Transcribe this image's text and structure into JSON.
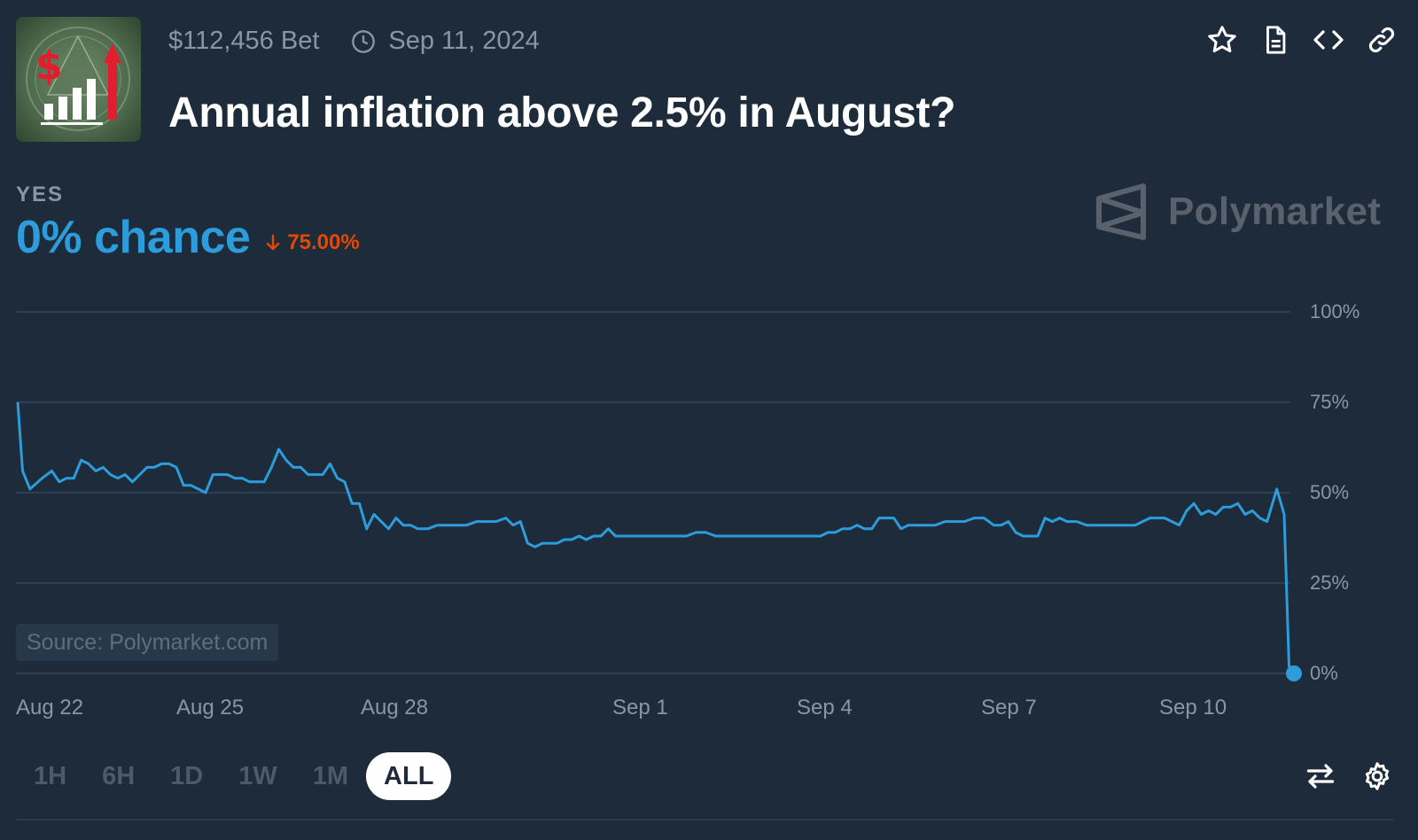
{
  "header": {
    "volume": "$112,456 Bet",
    "date": "Sep 11, 2024",
    "title": "Annual inflation above 2.5% in August?",
    "icons": [
      "star-icon",
      "document-icon",
      "code-icon",
      "link-icon"
    ]
  },
  "outcome": {
    "label": "YES",
    "chance": "0% chance",
    "change": "75.00%",
    "change_direction": "down"
  },
  "brand": {
    "name": "Polymarket"
  },
  "source": "Source: Polymarket.com",
  "time_ranges": [
    {
      "label": "1H",
      "active": false
    },
    {
      "label": "6H",
      "active": false
    },
    {
      "label": "1D",
      "active": false
    },
    {
      "label": "1W",
      "active": false
    },
    {
      "label": "1M",
      "active": false
    },
    {
      "label": "ALL",
      "active": true
    }
  ],
  "footer_icons": [
    "swap-icon",
    "settings-icon"
  ],
  "colors": {
    "background": "#1d2b3a",
    "line": "#2d9cdb",
    "negative": "#e64800",
    "grid": "#34485c",
    "muted_text": "#8a96a6"
  },
  "chart_data": {
    "type": "line",
    "x_tick_labels": [
      "Aug 22",
      "Aug 25",
      "Aug 28",
      "Sep 1",
      "Sep 4",
      "Sep 7",
      "Sep 10"
    ],
    "y_tick_labels": [
      "100%",
      "75%",
      "50%",
      "25%",
      "0%"
    ],
    "ylim": [
      0,
      100
    ],
    "grid": true,
    "series": [
      {
        "values": [
          [
            0,
            75
          ],
          [
            0.1,
            56
          ],
          [
            0.25,
            51
          ],
          [
            0.5,
            54
          ],
          [
            0.7,
            56
          ],
          [
            0.85,
            53
          ],
          [
            1.0,
            54
          ],
          [
            1.15,
            54
          ],
          [
            1.3,
            59
          ],
          [
            1.45,
            58
          ],
          [
            1.6,
            56
          ],
          [
            1.75,
            57
          ],
          [
            1.9,
            55
          ],
          [
            2.05,
            54
          ],
          [
            2.2,
            55
          ],
          [
            2.35,
            53
          ],
          [
            2.5,
            55
          ],
          [
            2.65,
            57
          ],
          [
            2.8,
            57
          ],
          [
            2.95,
            58
          ],
          [
            3.1,
            58
          ],
          [
            3.25,
            57
          ],
          [
            3.4,
            52
          ],
          [
            3.55,
            52
          ],
          [
            3.7,
            51
          ],
          [
            3.85,
            50
          ],
          [
            4.0,
            55
          ],
          [
            4.15,
            55
          ],
          [
            4.3,
            55
          ],
          [
            4.45,
            54
          ],
          [
            4.6,
            54
          ],
          [
            4.75,
            53
          ],
          [
            4.9,
            53
          ],
          [
            5.05,
            53
          ],
          [
            5.2,
            57
          ],
          [
            5.35,
            62
          ],
          [
            5.5,
            59
          ],
          [
            5.65,
            57
          ],
          [
            5.8,
            57
          ],
          [
            5.95,
            55
          ],
          [
            6.1,
            55
          ],
          [
            6.25,
            55
          ],
          [
            6.4,
            58
          ],
          [
            6.55,
            54
          ],
          [
            6.7,
            53
          ],
          [
            6.85,
            47
          ],
          [
            7.0,
            47
          ],
          [
            7.15,
            40
          ],
          [
            7.3,
            44
          ],
          [
            7.45,
            42
          ],
          [
            7.6,
            40
          ],
          [
            7.75,
            43
          ],
          [
            7.9,
            41
          ],
          [
            8.05,
            41
          ],
          [
            8.2,
            40
          ],
          [
            8.4,
            40
          ],
          [
            8.6,
            41
          ],
          [
            8.8,
            41
          ],
          [
            9.0,
            41
          ],
          [
            9.2,
            41
          ],
          [
            9.4,
            42
          ],
          [
            9.6,
            42
          ],
          [
            9.8,
            42
          ],
          [
            10.0,
            43
          ],
          [
            10.15,
            41
          ],
          [
            10.3,
            42
          ],
          [
            10.45,
            36
          ],
          [
            10.6,
            35
          ],
          [
            10.75,
            36
          ],
          [
            10.9,
            36
          ],
          [
            11.05,
            36
          ],
          [
            11.2,
            37
          ],
          [
            11.35,
            37
          ],
          [
            11.5,
            38
          ],
          [
            11.65,
            37
          ],
          [
            11.8,
            38
          ],
          [
            11.95,
            38
          ],
          [
            12.1,
            40
          ],
          [
            12.25,
            38
          ],
          [
            12.4,
            38
          ],
          [
            12.55,
            38
          ],
          [
            12.7,
            38
          ],
          [
            12.9,
            38
          ],
          [
            13.1,
            38
          ],
          [
            13.3,
            38
          ],
          [
            13.5,
            38
          ],
          [
            13.7,
            38
          ],
          [
            13.9,
            39
          ],
          [
            14.1,
            39
          ],
          [
            14.3,
            38
          ],
          [
            14.5,
            38
          ],
          [
            14.7,
            38
          ],
          [
            14.9,
            38
          ],
          [
            15.1,
            38
          ],
          [
            15.3,
            38
          ],
          [
            15.5,
            38
          ],
          [
            15.7,
            38
          ],
          [
            15.9,
            38
          ],
          [
            16.1,
            38
          ],
          [
            16.3,
            38
          ],
          [
            16.45,
            38
          ],
          [
            16.6,
            39
          ],
          [
            16.75,
            39
          ],
          [
            16.9,
            40
          ],
          [
            17.05,
            40
          ],
          [
            17.2,
            41
          ],
          [
            17.35,
            40
          ],
          [
            17.5,
            40
          ],
          [
            17.65,
            43
          ],
          [
            17.8,
            43
          ],
          [
            17.95,
            43
          ],
          [
            18.1,
            40
          ],
          [
            18.25,
            41
          ],
          [
            18.4,
            41
          ],
          [
            18.6,
            41
          ],
          [
            18.8,
            41
          ],
          [
            19.0,
            42
          ],
          [
            19.2,
            42
          ],
          [
            19.4,
            42
          ],
          [
            19.6,
            43
          ],
          [
            19.8,
            43
          ],
          [
            20.0,
            41
          ],
          [
            20.15,
            41
          ],
          [
            20.3,
            42
          ],
          [
            20.45,
            39
          ],
          [
            20.6,
            38
          ],
          [
            20.75,
            38
          ],
          [
            20.9,
            38
          ],
          [
            21.05,
            43
          ],
          [
            21.2,
            42
          ],
          [
            21.35,
            43
          ],
          [
            21.5,
            42
          ],
          [
            21.7,
            42
          ],
          [
            21.9,
            41
          ],
          [
            22.1,
            41
          ],
          [
            22.3,
            41
          ],
          [
            22.5,
            41
          ],
          [
            22.7,
            41
          ],
          [
            22.9,
            41
          ],
          [
            23.05,
            42
          ],
          [
            23.2,
            43
          ],
          [
            23.35,
            43
          ],
          [
            23.5,
            43
          ],
          [
            23.65,
            42
          ],
          [
            23.8,
            41
          ],
          [
            23.95,
            45
          ],
          [
            24.1,
            47
          ],
          [
            24.25,
            44
          ],
          [
            24.4,
            45
          ],
          [
            24.55,
            44
          ],
          [
            24.7,
            46
          ],
          [
            24.85,
            46
          ],
          [
            25.0,
            47
          ],
          [
            25.15,
            44
          ],
          [
            25.3,
            45
          ],
          [
            25.45,
            43
          ],
          [
            25.6,
            42
          ],
          [
            25.8,
            51
          ],
          [
            25.95,
            44
          ],
          [
            26.05,
            2
          ],
          [
            26.15,
            0
          ]
        ]
      }
    ]
  }
}
